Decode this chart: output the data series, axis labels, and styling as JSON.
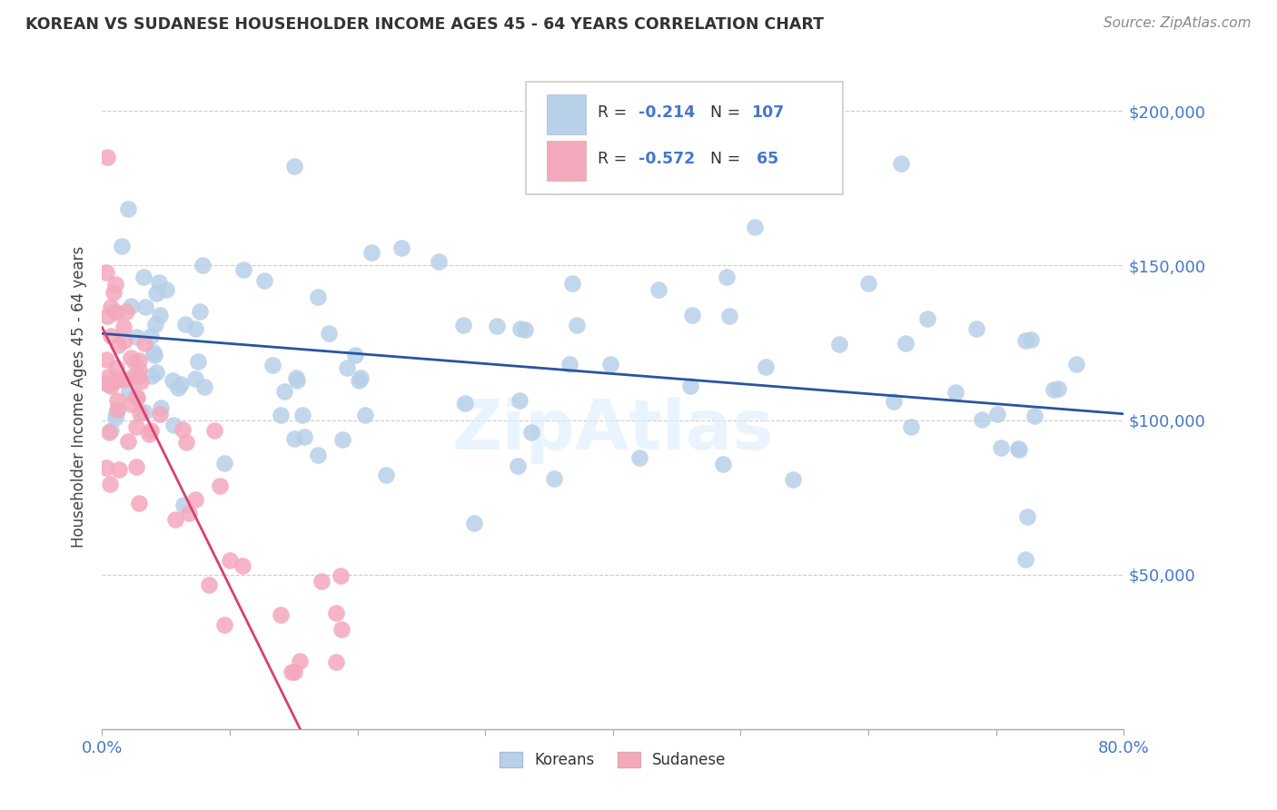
{
  "title": "KOREAN VS SUDANESE HOUSEHOLDER INCOME AGES 45 - 64 YEARS CORRELATION CHART",
  "source": "Source: ZipAtlas.com",
  "ylabel": "Householder Income Ages 45 - 64 years",
  "ytick_labels": [
    "$50,000",
    "$100,000",
    "$150,000",
    "$200,000"
  ],
  "ytick_values": [
    50000,
    100000,
    150000,
    200000
  ],
  "ylim": [
    0,
    215000
  ],
  "xlim": [
    0.0,
    0.8
  ],
  "korean_R": -0.214,
  "korean_N": 107,
  "sudanese_R": -0.572,
  "sudanese_N": 65,
  "korean_color": "#b8d0e8",
  "sudanese_color": "#f4a8bc",
  "korean_line_color": "#2855a0",
  "sudanese_line_color": "#d84070",
  "background_color": "#ffffff",
  "grid_color": "#cccccc",
  "title_color": "#333333",
  "xtick_labels": [
    "0.0%",
    "",
    "",
    "",
    "",
    "",
    "",
    "",
    "80.0%"
  ],
  "xtick_values": [
    0.0,
    0.1,
    0.2,
    0.3,
    0.4,
    0.5,
    0.6,
    0.7,
    0.8
  ]
}
